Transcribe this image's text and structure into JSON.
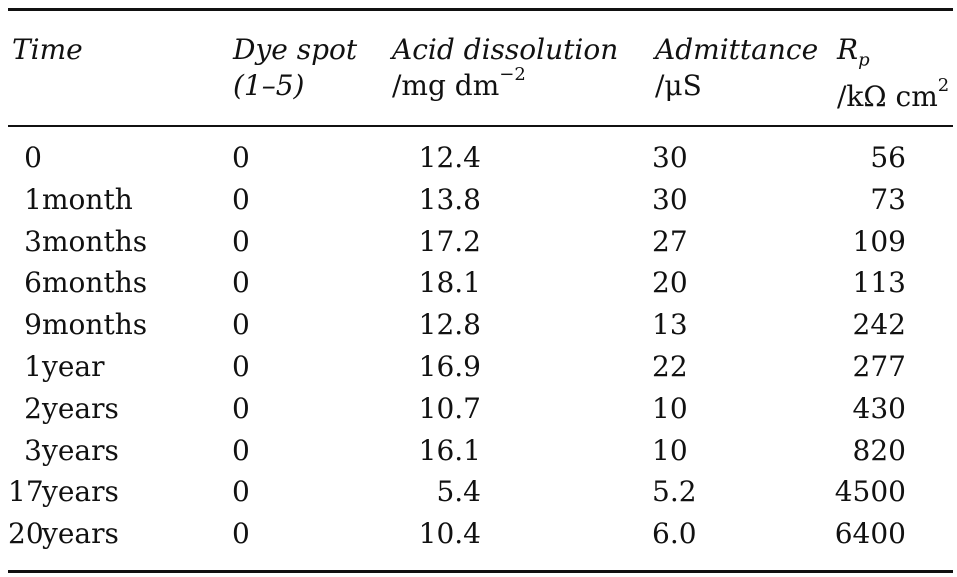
{
  "table": {
    "headers": {
      "time": "Time",
      "dye_line1": "Dye spot",
      "dye_line2": "(1–5)",
      "acid_line1": "Acid dissolution",
      "acid_line2_pre": "/mg dm",
      "acid_line2_sup": "−2",
      "admittance_line1": "Admittance",
      "admittance_line2": "/μS",
      "rp_main": "R",
      "rp_sub": "p",
      "rp_line2_pre": "/kΩ cm",
      "rp_line2_sup": "2"
    },
    "rows": [
      {
        "time": "0",
        "dye": "0",
        "acid": "12.4",
        "admittance": "30",
        "rp": "56"
      },
      {
        "time": "1 month",
        "dye": "0",
        "acid": "13.8",
        "admittance": "30",
        "rp": "73"
      },
      {
        "time": "3 months",
        "dye": "0",
        "acid": "17.2",
        "admittance": "27",
        "rp": "109"
      },
      {
        "time": "6 months",
        "dye": "0",
        "acid": "18.1",
        "admittance": "20",
        "rp": "113"
      },
      {
        "time": "9 months",
        "dye": "0",
        "acid": "12.8",
        "admittance": "13",
        "rp": "242"
      },
      {
        "time": "1 year",
        "dye": "0",
        "acid": "16.9",
        "admittance": "22",
        "rp": "277"
      },
      {
        "time": "2 years",
        "dye": "0",
        "acid": "10.7",
        "admittance": "10",
        "rp": "430"
      },
      {
        "time": "3 years",
        "dye": "0",
        "acid": "16.1",
        "admittance": "10",
        "rp": "820"
      },
      {
        "time": "17 years",
        "dye": "0",
        "acid": "5.4",
        "admittance": "5.2",
        "rp": "4500"
      },
      {
        "time": "20 years",
        "dye": "0",
        "acid": "10.4",
        "admittance": "6.0",
        "rp": "6400"
      }
    ]
  }
}
